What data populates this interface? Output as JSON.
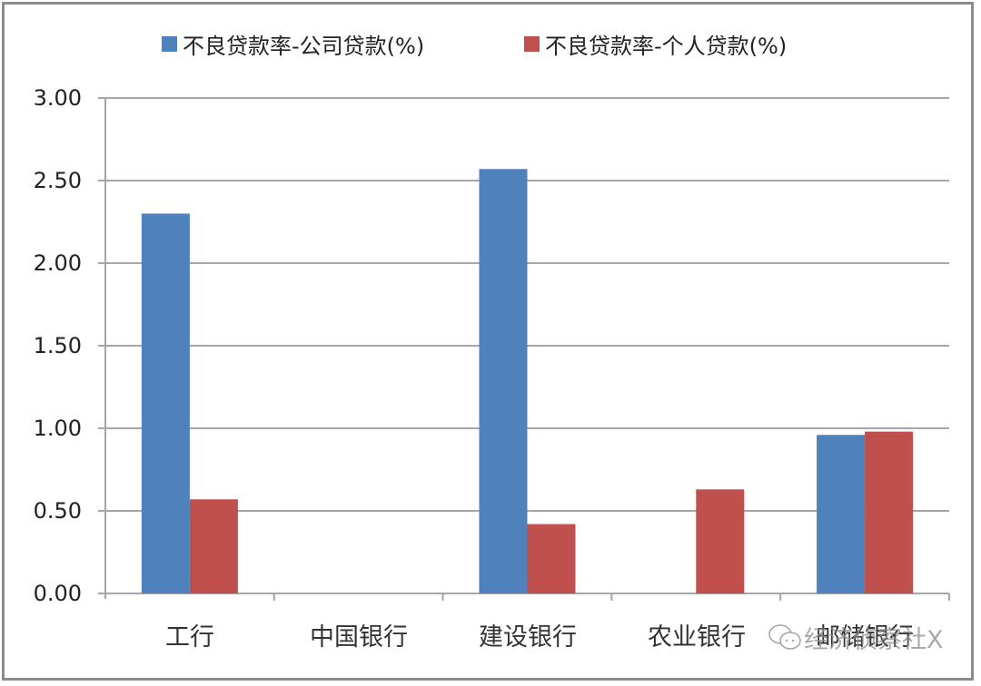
{
  "chart_data": {
    "type": "bar",
    "title": "",
    "xlabel": "",
    "ylabel": "",
    "categories": [
      "工行",
      "中国银行",
      "建设银行",
      "农业银行",
      "邮储银行"
    ],
    "series": [
      {
        "name": "不良贷款率-公司贷款(%)",
        "color": "#4f81bd",
        "values": [
          2.3,
          null,
          2.57,
          null,
          0.96
        ]
      },
      {
        "name": "不良贷款率-个人贷款(%)",
        "color": "#c0504d",
        "values": [
          0.57,
          null,
          0.42,
          0.63,
          0.98
        ]
      }
    ],
    "ylim": [
      0,
      3
    ],
    "yticks": [
      "0.00",
      "0.50",
      "1.00",
      "1.50",
      "2.00",
      "2.50",
      "3.00"
    ],
    "grid": true,
    "legend_position": "top"
  },
  "legend": {
    "items": [
      {
        "label": "不良贷款率-公司贷款(%)",
        "color": "#4f81bd"
      },
      {
        "label": "不良贷款率-个人贷款(%)",
        "color": "#c0504d"
      }
    ]
  },
  "axis": {
    "y_ticks": [
      "3.00",
      "2.50",
      "2.00",
      "1.50",
      "1.00",
      "0.50",
      "0.00"
    ],
    "x_labels": [
      "工行",
      "中国银行",
      "建设银行",
      "农业银行",
      "邮储银行"
    ]
  },
  "watermark": {
    "text": "经济侦察社X",
    "icon": "wechat-icon"
  }
}
